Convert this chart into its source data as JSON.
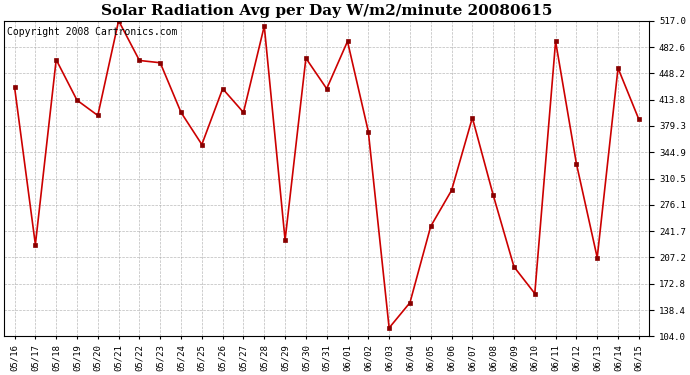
{
  "title": "Solar Radiation Avg per Day W/m2/minute 20080615",
  "copyright": "Copyright 2008 Cartronics.com",
  "dates": [
    "05/16",
    "05/17",
    "05/18",
    "05/19",
    "05/20",
    "05/21",
    "05/22",
    "05/23",
    "05/24",
    "05/25",
    "05/26",
    "05/27",
    "05/28",
    "05/29",
    "05/30",
    "05/31",
    "06/01",
    "06/02",
    "06/03",
    "06/04",
    "06/05",
    "06/06",
    "06/07",
    "06/08",
    "06/09",
    "06/10",
    "06/11",
    "06/12",
    "06/13",
    "06/14",
    "06/15"
  ],
  "values": [
    430,
    224,
    466,
    413,
    393,
    517,
    465,
    462,
    397,
    355,
    428,
    397,
    510,
    230,
    468,
    428,
    490,
    372,
    115,
    148,
    248,
    295,
    390,
    289,
    195,
    160,
    490,
    330,
    207,
    455,
    388
  ],
  "line_color": "#cc0000",
  "marker_color": "#880000",
  "bg_color": "#ffffff",
  "plot_bg_color": "#ffffff",
  "grid_color": "#aaaaaa",
  "yticks": [
    104.0,
    138.4,
    172.8,
    207.2,
    241.7,
    276.1,
    310.5,
    344.9,
    379.3,
    413.8,
    448.2,
    482.6,
    517.0
  ],
  "ylim_min": 104.0,
  "ylim_max": 517.0,
  "title_fontsize": 11,
  "tick_fontsize": 6.5,
  "copyright_fontsize": 7
}
